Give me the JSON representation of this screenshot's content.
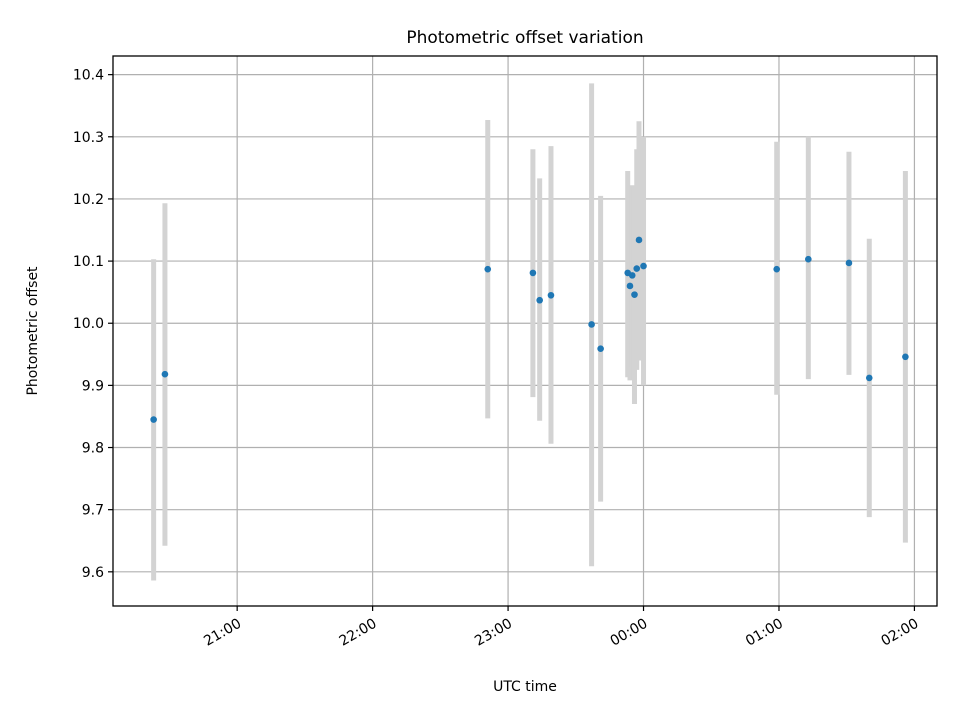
{
  "chart_data": {
    "type": "scatter",
    "title": "Photometric offset variation",
    "xlabel": "UTC time",
    "ylabel": "Photometric offset",
    "grid": true,
    "x_axis": {
      "kind": "time",
      "range": [
        "20:05",
        "02:10"
      ],
      "ticks": [
        "21:00",
        "22:00",
        "23:00",
        "00:00",
        "01:00",
        "02:00"
      ]
    },
    "y_axis": {
      "range": [
        9.545,
        10.43
      ],
      "ticks": [
        "9.6",
        "9.7",
        "9.8",
        "9.9",
        "10.0",
        "10.1",
        "10.2",
        "10.3",
        "10.4"
      ]
    },
    "colors": {
      "point": "#1f77b4",
      "error_bar": "#d3d3d3",
      "grid": "#b0b0b0"
    },
    "series": [
      {
        "points": [
          {
            "time": "20:23",
            "y": 9.845,
            "lo": 9.586,
            "hi": 10.103
          },
          {
            "time": "20:28",
            "y": 9.918,
            "lo": 9.642,
            "hi": 10.193
          },
          {
            "time": "22:51",
            "y": 10.087,
            "lo": 9.847,
            "hi": 10.327
          },
          {
            "time": "23:11",
            "y": 10.081,
            "lo": 9.881,
            "hi": 10.28
          },
          {
            "time": "23:14",
            "y": 10.037,
            "lo": 9.843,
            "hi": 10.233
          },
          {
            "time": "23:19",
            "y": 10.045,
            "lo": 9.806,
            "hi": 10.285
          },
          {
            "time": "23:37",
            "y": 9.998,
            "lo": 9.609,
            "hi": 10.386
          },
          {
            "time": "23:41",
            "y": 9.959,
            "lo": 9.713,
            "hi": 10.205
          },
          {
            "time": "23:53",
            "y": 10.081,
            "lo": 9.913,
            "hi": 10.245
          },
          {
            "time": "23:54",
            "y": 10.06,
            "lo": 9.908,
            "hi": 10.213
          },
          {
            "time": "23:55",
            "y": 10.077,
            "lo": 9.93,
            "hi": 10.222
          },
          {
            "time": "23:56",
            "y": 10.046,
            "lo": 9.87,
            "hi": 10.22
          },
          {
            "time": "23:57",
            "y": 10.088,
            "lo": 9.925,
            "hi": 10.28
          },
          {
            "time": "23:58",
            "y": 10.134,
            "lo": 9.94,
            "hi": 10.325
          },
          {
            "time": "00:00",
            "y": 10.092,
            "lo": 9.9,
            "hi": 10.3
          },
          {
            "time": "00:59",
            "y": 10.087,
            "lo": 9.885,
            "hi": 10.292
          },
          {
            "time": "01:13",
            "y": 10.103,
            "lo": 9.91,
            "hi": 10.3
          },
          {
            "time": "01:31",
            "y": 10.097,
            "lo": 9.917,
            "hi": 10.276
          },
          {
            "time": "01:40",
            "y": 9.912,
            "lo": 9.688,
            "hi": 10.136
          },
          {
            "time": "01:56",
            "y": 9.946,
            "lo": 9.647,
            "hi": 10.245
          }
        ]
      }
    ]
  }
}
